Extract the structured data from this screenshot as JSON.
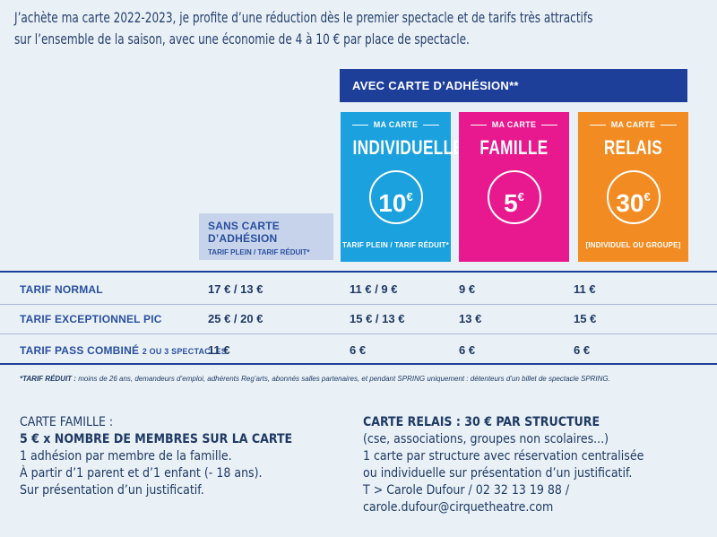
{
  "intro": {
    "line1": "J’achète ma carte 2022-2023, je profite d’une réduction dès le premier spectacle et de tarifs très attractifs",
    "line2": "sur l’ensemble de la saison, avec une économie de 4 à 10 € par place de spectacle."
  },
  "band_label": "AVEC CARTE D’ADHÉSION**",
  "cards": {
    "individuelle": {
      "top": "MA CARTE",
      "name": "INDIVIDUELLE",
      "price": "10",
      "currency": "€",
      "footer": "TARIF PLEIN / TARIF RÉDUIT*",
      "color": "#1ba1dd"
    },
    "famille": {
      "top": "MA CARTE",
      "name": "FAMILLE",
      "price": "5",
      "currency": "€",
      "footer": "",
      "color": "#e8188f"
    },
    "relais": {
      "top": "MA CARTE",
      "name": "RELAIS",
      "price": "30",
      "currency": "€",
      "footer": "[INDIVIDUEL OU GROUPE]",
      "color": "#f28c22"
    }
  },
  "sans_carte": {
    "title": "SANS CARTE D’ADHÉSION",
    "subtitle": "TARIF PLEIN / TARIF RÉDUIT*"
  },
  "rows": [
    {
      "label": "TARIF NORMAL",
      "label_small": "",
      "sans": "17 € / 13 €",
      "individuelle": "11 € / 9 €",
      "famille": "9 €",
      "relais": "11 €"
    },
    {
      "label": "TARIF EXCEPTIONNEL PIC",
      "label_small": "",
      "sans": "25 € / 20 €",
      "individuelle": "15 € / 13 €",
      "famille": "13 €",
      "relais": "15 €"
    },
    {
      "label": "TARIF PASS COMBINÉ",
      "label_small": "2 OU 3 SPECTACLES",
      "sans": "11 €",
      "individuelle": "6 €",
      "famille": "6 €",
      "relais": "6 €"
    }
  ],
  "footnote": {
    "label": "*TARIF RÉDUIT :",
    "text": "moins de 26 ans, demandeurs d’emploi, adhérents Reg’arts, abonnés salles partenaires, et pendant SPRING uniquement : détenteurs d’un billet de spectacle SPRING."
  },
  "famille_info": {
    "heading": "CARTE FAMILLE :",
    "formula": "5 € x NOMBRE DE MEMBRES SUR LA CARTE",
    "line1": "1 adhésion par membre de la famille.",
    "line2": "À partir d’1 parent et d’1 enfant (- 18 ans).",
    "line3": "Sur présentation d’un justificatif."
  },
  "relais_info": {
    "heading": "CARTE RELAIS : 30 € PAR STRUCTURE",
    "line1": "(cse, associations, groupes non scolaires...)",
    "line2": "1 carte par structure avec réservation centralisée",
    "line3": "ou individuelle sur présentation d’un justificatif.",
    "line4": "T > Carole Dufour / 02 32 13 19 88 /",
    "line5": "carole.dufour@cirquetheatre.com"
  }
}
